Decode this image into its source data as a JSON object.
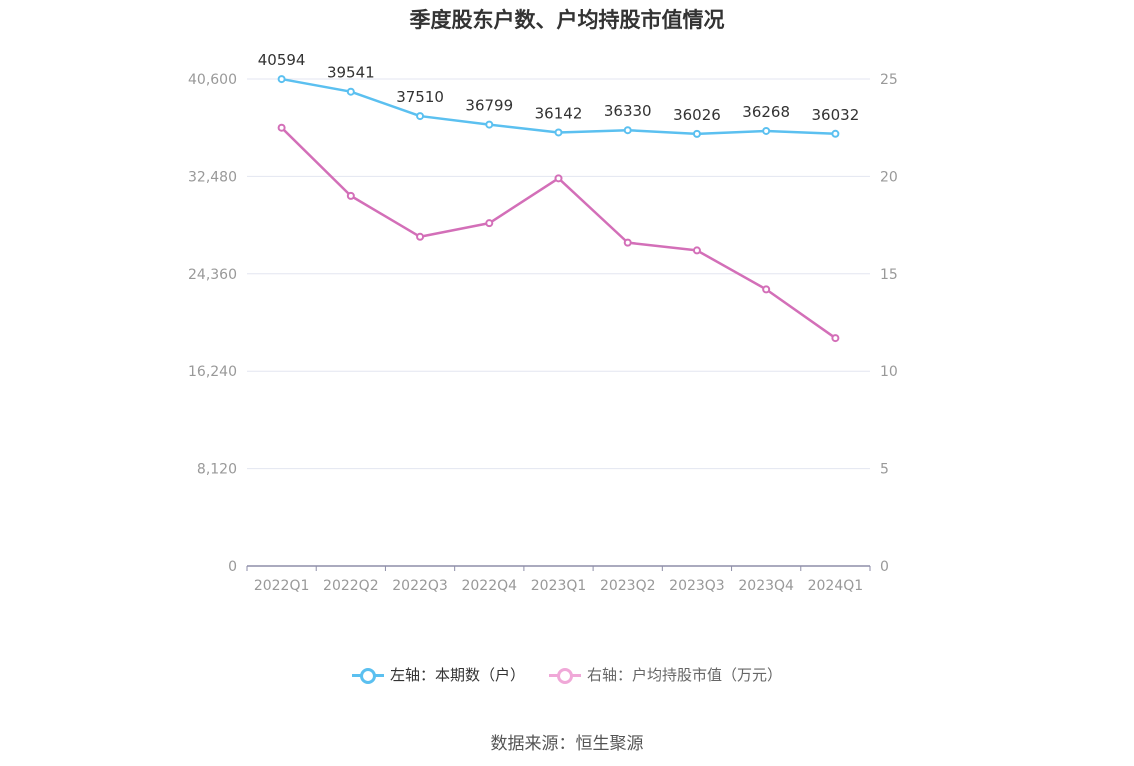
{
  "title": "季度股东户数、户均持股市值情况",
  "source": "数据来源：恒生聚源",
  "legend": {
    "left_label": "左轴：本期数（户）",
    "right_label": "右轴：户均持股市值（万元）"
  },
  "colors": {
    "left_series": "#5bc0f0",
    "right_series": "#d36fb8",
    "right_legend": "#f0a8d8",
    "grid": "#e3e6f0",
    "axis": "#8e8ea8",
    "tick_text": "#999999",
    "label_text": "#333333"
  },
  "chart_data": {
    "type": "line",
    "categories": [
      "2022Q1",
      "2022Q2",
      "2022Q3",
      "2022Q4",
      "2023Q1",
      "2023Q2",
      "2023Q3",
      "2023Q4",
      "2024Q1"
    ],
    "left_axis": {
      "ticks": [
        "0",
        "8,120",
        "16,240",
        "24,360",
        "32,480",
        "40,600"
      ],
      "ylim": [
        0,
        40600
      ]
    },
    "right_axis": {
      "ticks": [
        "0",
        "5",
        "10",
        "15",
        "20",
        "25"
      ],
      "ylim": [
        0,
        25
      ]
    },
    "series": [
      {
        "name": "左轴：本期数（户）",
        "axis": "left",
        "values": [
          40594,
          39541,
          37510,
          36799,
          36142,
          36330,
          36026,
          36268,
          36032
        ],
        "labels": [
          "40594",
          "39541",
          "37510",
          "36799",
          "36142",
          "36330",
          "36026",
          "36268",
          "36032"
        ]
      },
      {
        "name": "右轴：户均持股市值（万元）",
        "axis": "right",
        "values": [
          22.5,
          19.0,
          16.9,
          17.6,
          19.9,
          16.6,
          16.2,
          14.2,
          11.7
        ]
      }
    ],
    "grid": true,
    "legend_position": "bottom"
  }
}
